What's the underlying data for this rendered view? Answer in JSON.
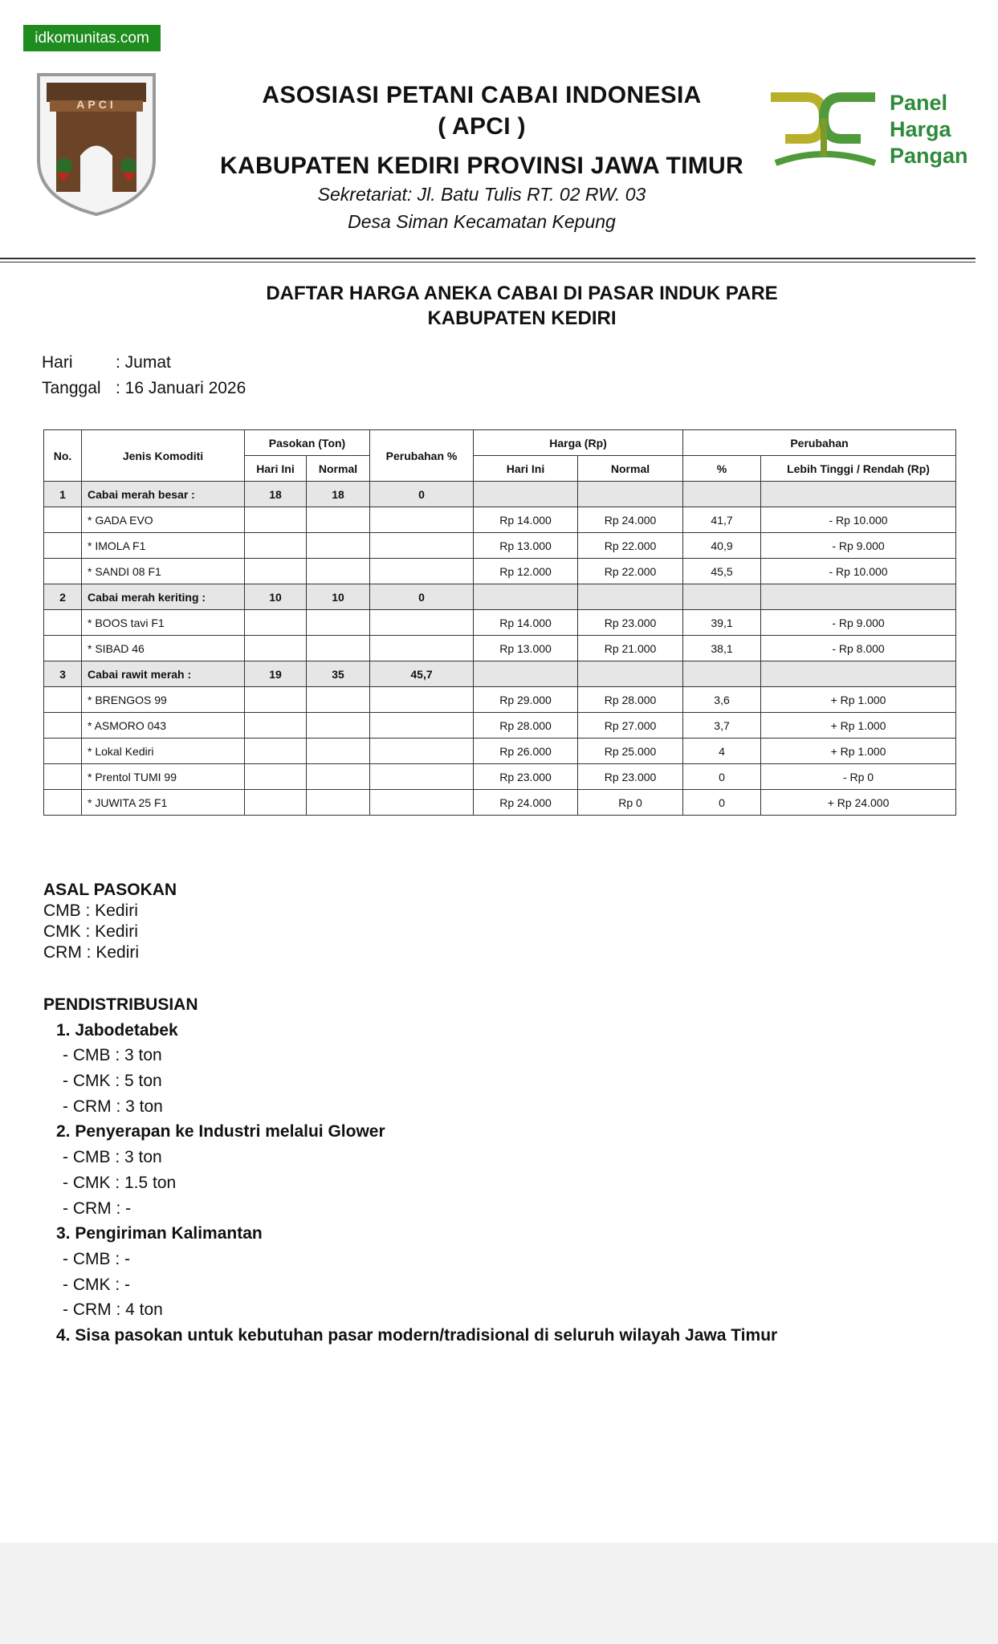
{
  "watermark": "idkomunitas.com",
  "header": {
    "logo_text": "APCI",
    "org": "ASOSIASI PETANI CABAI INDONESIA",
    "abbr": "( APCI )",
    "region": "KABUPATEN KEDIRI PROVINSI JAWA TIMUR",
    "address_1": "Sekretariat: Jl. Batu Tulis RT. 02 RW. 03",
    "address_2": "Desa Siman Kecamatan Kepung",
    "partner_logo": [
      "Panel",
      "Harga",
      "Pangan"
    ]
  },
  "title": [
    "DAFTAR HARGA ANEKA CABAI DI PASAR INDUK PARE",
    "KABUPATEN KEDIRI"
  ],
  "info": [
    {
      "label": "Hari",
      "value": ": Jumat"
    },
    {
      "label": "Tanggal",
      "value": ": 16 Januari 2026"
    }
  ],
  "table": {
    "header_top": [
      "No.",
      "Jenis Komoditi",
      "Pasokan (Ton)",
      "Perubahan %",
      "Harga (Rp)",
      "Perubahan"
    ],
    "header_sub": [
      "Hari Ini",
      "Normal",
      "Hari Ini",
      "Normal",
      "%",
      "Lebih Tinggi / Rendah (Rp)"
    ],
    "rows": [
      [
        "1",
        "Cabai merah besar :",
        "18",
        "18",
        "0",
        null,
        null,
        null,
        null
      ],
      [
        null,
        "* GADA EVO",
        null,
        null,
        null,
        "Rp 14.000",
        "Rp 24.000",
        "41,7",
        "- Rp 10.000"
      ],
      [
        null,
        "* IMOLA F1",
        null,
        null,
        null,
        "Rp 13.000",
        "Rp 22.000",
        "40,9",
        "- Rp 9.000"
      ],
      [
        null,
        "* SANDI 08 F1",
        null,
        null,
        null,
        "Rp 12.000",
        "Rp 22.000",
        "45,5",
        "- Rp 10.000"
      ],
      [
        "2",
        "Cabai merah keriting :",
        "10",
        "10",
        "0",
        null,
        null,
        null,
        null
      ],
      [
        null,
        "* BOOS tavi F1",
        null,
        null,
        null,
        "Rp 14.000",
        "Rp 23.000",
        "39,1",
        "- Rp 9.000"
      ],
      [
        null,
        "* SIBAD 46",
        null,
        null,
        null,
        "Rp 13.000",
        "Rp 21.000",
        "38,1",
        "- Rp 8.000"
      ],
      [
        "3",
        "Cabai rawit merah :",
        "19",
        "35",
        "45,7",
        null,
        null,
        null,
        null
      ],
      [
        null,
        "* BRENGOS 99",
        null,
        null,
        null,
        "Rp 29.000",
        "Rp 28.000",
        "3,6",
        "+ Rp 1.000"
      ],
      [
        null,
        "* ASMORO 043",
        null,
        null,
        null,
        "Rp 28.000",
        "Rp 27.000",
        "3,7",
        "+ Rp 1.000"
      ],
      [
        null,
        "* Lokal Kediri",
        null,
        null,
        null,
        "Rp 26.000",
        "Rp 25.000",
        "4",
        "+ Rp 1.000"
      ],
      [
        null,
        "* Prentol TUMI 99",
        null,
        null,
        null,
        "Rp 23.000",
        "Rp 23.000",
        "0",
        "- Rp 0"
      ],
      [
        null,
        "* JUWITA 25 F1",
        null,
        null,
        null,
        "Rp 24.000",
        "Rp 0",
        "0",
        "+ Rp 24.000"
      ]
    ]
  },
  "supply": {
    "title": "ASAL PASOKAN",
    "lines": [
      "CMB : Kediri",
      "CMK : Kediri",
      "CRM : Kediri"
    ]
  },
  "distribution": {
    "title": "PENDISTRIBUSIAN",
    "groups": [
      {
        "heading": "1. Jabodetabek",
        "items": [
          "- CMB : 3 ton",
          "- CMK : 5 ton",
          "- CRM : 3 ton"
        ]
      },
      {
        "heading": "2. Penyerapan ke Industri melalui Glower",
        "items": [
          "- CMB : 3 ton",
          "- CMK : 1.5 ton",
          "- CRM : -"
        ]
      },
      {
        "heading": "3. Pengiriman Kalimantan",
        "items": [
          "- CMB : -",
          "- CMK : -",
          "- CRM : 4 ton"
        ]
      },
      {
        "heading": "4. Sisa pasokan untuk kebutuhan pasar modern/tradisional di seluruh wilayah Jawa Timur",
        "items": []
      }
    ]
  }
}
